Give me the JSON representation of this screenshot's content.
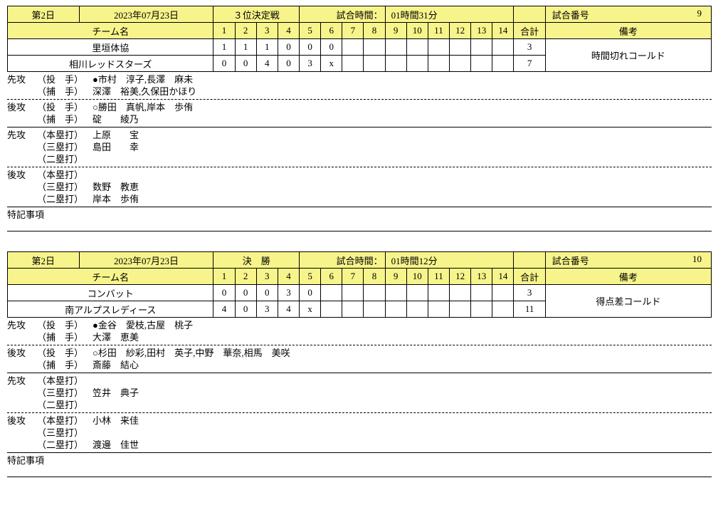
{
  "games": [
    {
      "day": "第2日",
      "date": "2023年07月23日",
      "round": "３位決定戦",
      "time_label": "試合時間：",
      "time_value": "01時間31分",
      "num_label": "試合番号",
      "num_value": "9",
      "team_header": "チーム名",
      "total_header": "合計",
      "biko_header": "備考",
      "innings": [
        "1",
        "2",
        "3",
        "4",
        "5",
        "6",
        "7",
        "8",
        "9",
        "10",
        "11",
        "12",
        "13",
        "14"
      ],
      "teams": [
        {
          "name": "里垣体協",
          "scores": [
            "1",
            "1",
            "1",
            "0",
            "0",
            "0",
            "",
            "",
            "",
            "",
            "",
            "",
            "",
            ""
          ],
          "total": "3"
        },
        {
          "name": "相川レッドスターズ",
          "scores": [
            "0",
            "0",
            "4",
            "0",
            "3",
            "x",
            "",
            "",
            "",
            "",
            "",
            "",
            "",
            ""
          ],
          "total": "7"
        }
      ],
      "biko": "時間切れコールド",
      "first_pitchers_label": "先攻",
      "first_p_role": "（投　手）",
      "first_p_names": "●市村　淳子,長澤　麻未",
      "first_c_role": "（捕　手）",
      "first_c_names": "深澤　裕美,久保田かほり",
      "second_pitchers_label": "後攻",
      "second_p_role": "（投　手）",
      "second_p_names": "○勝田　真帆,岸本　歩侑",
      "second_c_role": "（捕　手）",
      "second_c_names": "碇　　綾乃",
      "first_hits_label": "先攻",
      "first_hr_role": "（本塁打）",
      "first_hr_names": "上原　　宝",
      "first_3b_role": "（三塁打）",
      "first_3b_names": "島田　　幸",
      "first_2b_role": "（二塁打）",
      "first_2b_names": "",
      "second_hits_label": "後攻",
      "second_hr_role": "（本塁打）",
      "second_hr_names": "",
      "second_3b_role": "（三塁打）",
      "second_3b_names": "数野　教恵",
      "second_2b_role": "（二塁打）",
      "second_2b_names": "岸本　歩侑",
      "tokki_label": "特記事項",
      "tokki_text": ""
    },
    {
      "day": "第2日",
      "date": "2023年07月23日",
      "round": "決　勝",
      "time_label": "試合時間：",
      "time_value": "01時間12分",
      "num_label": "試合番号",
      "num_value": "10",
      "team_header": "チーム名",
      "total_header": "合計",
      "biko_header": "備考",
      "innings": [
        "1",
        "2",
        "3",
        "4",
        "5",
        "6",
        "7",
        "8",
        "9",
        "10",
        "11",
        "12",
        "13",
        "14"
      ],
      "teams": [
        {
          "name": "コンバット",
          "scores": [
            "0",
            "0",
            "0",
            "3",
            "0",
            "",
            "",
            "",
            "",
            "",
            "",
            "",
            "",
            ""
          ],
          "total": "3"
        },
        {
          "name": "南アルプスレディース",
          "scores": [
            "4",
            "0",
            "3",
            "4",
            "x",
            "",
            "",
            "",
            "",
            "",
            "",
            "",
            "",
            ""
          ],
          "total": "11"
        }
      ],
      "biko": "得点差コールド",
      "first_pitchers_label": "先攻",
      "first_p_role": "（投　手）",
      "first_p_names": "●金谷　愛枝,古屋　桃子",
      "first_c_role": "（捕　手）",
      "first_c_names": "大澤　恵美",
      "second_pitchers_label": "後攻",
      "second_p_role": "（投　手）",
      "second_p_names": "○杉田　紗彩,田村　英子,中野　華奈,相馬　美咲",
      "second_c_role": "（捕　手）",
      "second_c_names": "斎藤　結心",
      "first_hits_label": "先攻",
      "first_hr_role": "（本塁打）",
      "first_hr_names": "",
      "first_3b_role": "（三塁打）",
      "first_3b_names": "笠井　典子",
      "first_2b_role": "（二塁打）",
      "first_2b_names": "",
      "second_hits_label": "後攻",
      "second_hr_role": "（本塁打）",
      "second_hr_names": "小林　来佳",
      "second_3b_role": "（三塁打）",
      "second_3b_names": "",
      "second_2b_role": "（二塁打）",
      "second_2b_names": "渡邊　佳世",
      "tokki_label": "特記事項",
      "tokki_text": ""
    }
  ]
}
